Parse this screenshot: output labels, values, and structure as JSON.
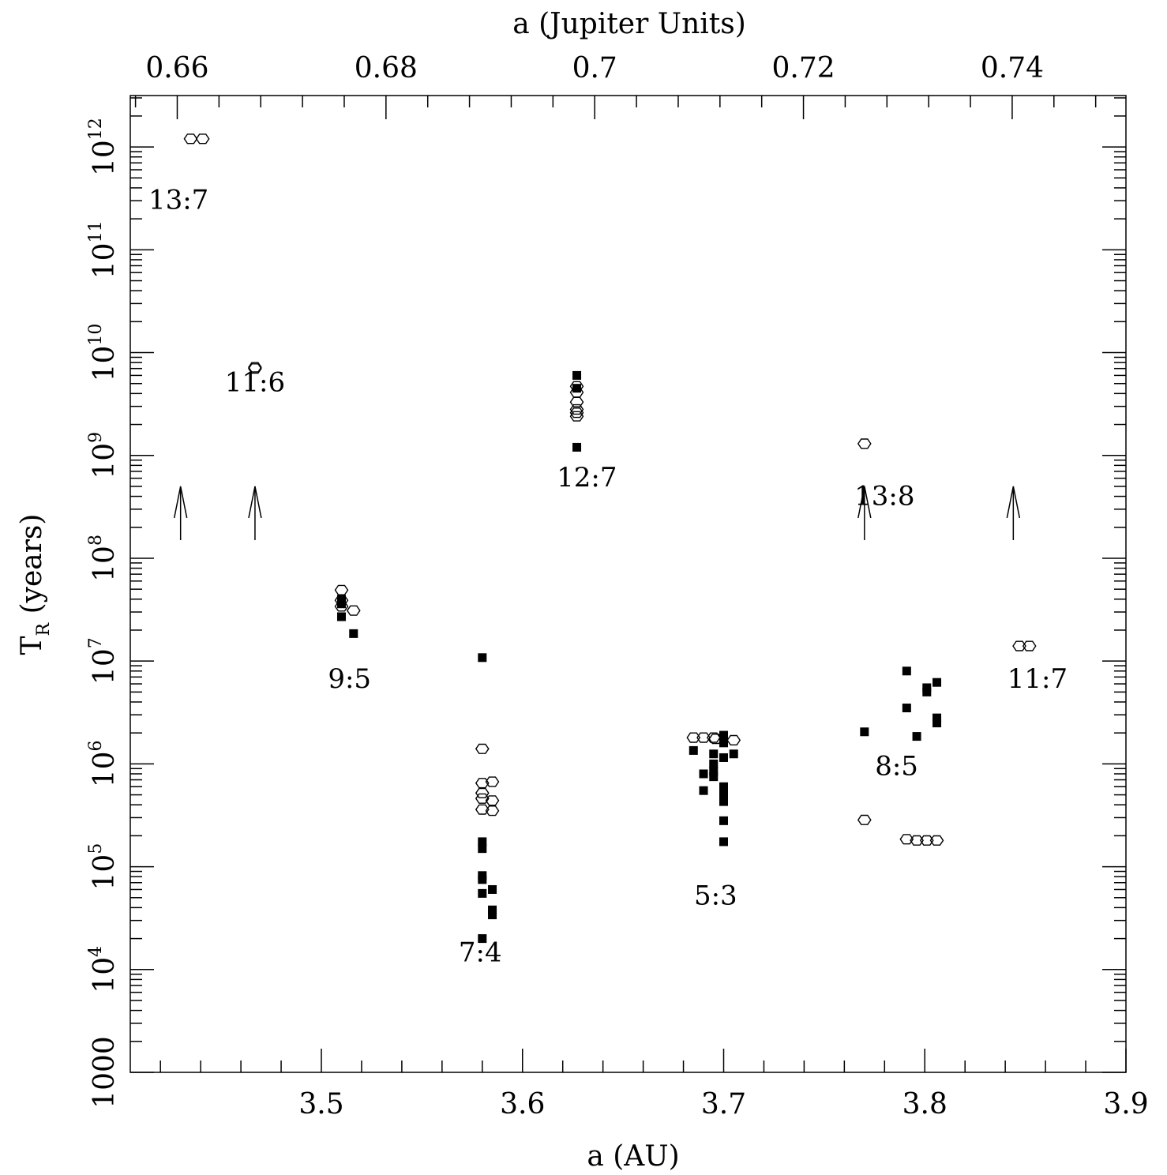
{
  "chart_data": {
    "type": "scatter",
    "title": "",
    "xlabel": "a (AU)",
    "xlabel_top": "a (Jupiter Units)",
    "ylabel": "T",
    "ylabel_subscript": "R",
    "ylabel_unit": "(years)",
    "xlim": [
      3.405,
      3.9
    ],
    "xlim_top": [
      0.6555,
      0.7509
    ],
    "ylim_log10": [
      3,
      12.5
    ],
    "yscale": "log",
    "grid": false,
    "legend": "none",
    "x_ticks": [
      {
        "value": 3.5,
        "label": "3.5"
      },
      {
        "value": 3.6,
        "label": "3.6"
      },
      {
        "value": 3.7,
        "label": "3.7"
      },
      {
        "value": 3.8,
        "label": "3.8"
      },
      {
        "value": 3.9,
        "label": "3.9"
      }
    ],
    "x_top_ticks": [
      {
        "value": 0.66,
        "label": "0.66"
      },
      {
        "value": 0.68,
        "label": "0.68"
      },
      {
        "value": 0.7,
        "label": "0.7"
      },
      {
        "value": 0.72,
        "label": "0.72"
      },
      {
        "value": 0.74,
        "label": "0.74"
      }
    ],
    "y_ticks": [
      {
        "exp": 3,
        "base": "1000",
        "sup": ""
      },
      {
        "exp": 4,
        "base": "10",
        "sup": "4"
      },
      {
        "exp": 5,
        "base": "10",
        "sup": "5"
      },
      {
        "exp": 6,
        "base": "10",
        "sup": "6"
      },
      {
        "exp": 7,
        "base": "10",
        "sup": "7"
      },
      {
        "exp": 8,
        "base": "10",
        "sup": "8"
      },
      {
        "exp": 9,
        "base": "10",
        "sup": "9"
      },
      {
        "exp": 10,
        "base": "10",
        "sup": "10"
      },
      {
        "exp": 11,
        "base": "10",
        "sup": "11"
      },
      {
        "exp": 12,
        "base": "10",
        "sup": "12"
      }
    ],
    "annotations": [
      {
        "text": "13:7",
        "x": 3.429,
        "y": 250000000000.0
      },
      {
        "text": "11:6",
        "x": 3.467,
        "y": 4200000000.0
      },
      {
        "text": "12:7",
        "x": 3.632,
        "y": 500000000.0
      },
      {
        "text": "13:8",
        "x": 3.78,
        "y": 330000000.0
      },
      {
        "text": "9:5",
        "x": 3.514,
        "y": 5500000.0
      },
      {
        "text": "7:4",
        "x": 3.579,
        "y": 12000.0
      },
      {
        "text": "5:3",
        "x": 3.696,
        "y": 43000.0
      },
      {
        "text": "8:5",
        "x": 3.786,
        "y": 780000.0
      },
      {
        "text": "11:7",
        "x": 3.856,
        "y": 5500000.0
      }
    ],
    "arrows": [
      {
        "x": 3.43,
        "from": 150000000.0,
        "to": 500000000.0
      },
      {
        "x": 3.467,
        "from": 150000000.0,
        "to": 500000000.0
      },
      {
        "x": 3.77,
        "from": 150000000.0,
        "to": 500000000.0
      },
      {
        "x": 3.844,
        "from": 150000000.0,
        "to": 500000000.0
      }
    ],
    "series": [
      {
        "marker": "open-hexagon",
        "points": [
          [
            3.435,
            1200000000000.0
          ],
          [
            3.441,
            1200000000000.0
          ],
          [
            3.467,
            7000000000.0
          ],
          [
            3.467,
            7200000000.0
          ],
          [
            3.51,
            49000000.0
          ],
          [
            3.51,
            39000000.0
          ],
          [
            3.51,
            34000000.0
          ],
          [
            3.516,
            31000000.0
          ],
          [
            3.627,
            4700000000.0
          ],
          [
            3.627,
            4100000000.0
          ],
          [
            3.627,
            3300000000.0
          ],
          [
            3.627,
            2800000000.0
          ],
          [
            3.627,
            2600000000.0
          ],
          [
            3.627,
            2400000000.0
          ],
          [
            3.58,
            1400000.0
          ],
          [
            3.58,
            650000.0
          ],
          [
            3.58,
            520000.0
          ],
          [
            3.58,
            460000.0
          ],
          [
            3.58,
            360000.0
          ],
          [
            3.585,
            670000.0
          ],
          [
            3.585,
            440000.0
          ],
          [
            3.585,
            350000.0
          ],
          [
            3.685,
            1800000.0
          ],
          [
            3.69,
            1800000.0
          ],
          [
            3.695,
            1800000.0
          ],
          [
            3.696,
            1750000.0
          ],
          [
            3.705,
            1700000.0
          ],
          [
            3.77,
            1300000000.0
          ],
          [
            3.77,
            285000.0
          ],
          [
            3.791,
            185000.0
          ],
          [
            3.796,
            180000.0
          ],
          [
            3.801,
            180000.0
          ],
          [
            3.806,
            180000.0
          ],
          [
            3.847,
            14000000.0
          ],
          [
            3.852,
            14000000.0
          ]
        ]
      },
      {
        "marker": "filled-square",
        "points": [
          [
            3.627,
            6000000000.0
          ],
          [
            3.627,
            4500000000.0
          ],
          [
            3.627,
            1200000000.0
          ],
          [
            3.51,
            40000000.0
          ],
          [
            3.51,
            36000000.0
          ],
          [
            3.51,
            27000000.0
          ],
          [
            3.516,
            18500000.0
          ],
          [
            3.58,
            10800000.0
          ],
          [
            3.58,
            175000.0
          ],
          [
            3.58,
            150000.0
          ],
          [
            3.58,
            82000.0
          ],
          [
            3.58,
            75000.0
          ],
          [
            3.58,
            55000.0
          ],
          [
            3.585,
            60000.0
          ],
          [
            3.585,
            38000.0
          ],
          [
            3.585,
            34000.0
          ],
          [
            3.58,
            20000.0
          ],
          [
            3.685,
            1350000.0
          ],
          [
            3.69,
            800000.0
          ],
          [
            3.69,
            550000.0
          ],
          [
            3.695,
            1250000.0
          ],
          [
            3.695,
            1000000.0
          ],
          [
            3.695,
            850000.0
          ],
          [
            3.695,
            750000.0
          ],
          [
            3.7,
            1900000.0
          ],
          [
            3.7,
            1600000.0
          ],
          [
            3.7,
            1150000.0
          ],
          [
            3.7,
            600000.0
          ],
          [
            3.7,
            500000.0
          ],
          [
            3.7,
            430000.0
          ],
          [
            3.7,
            280000.0
          ],
          [
            3.7,
            175000.0
          ],
          [
            3.705,
            1250000.0
          ],
          [
            3.77,
            2050000.0
          ],
          [
            3.791,
            8000000.0
          ],
          [
            3.791,
            3500000.0
          ],
          [
            3.796,
            1850000.0
          ],
          [
            3.801,
            5500000.0
          ],
          [
            3.801,
            5000000.0
          ],
          [
            3.806,
            6200000.0
          ],
          [
            3.806,
            2800000.0
          ],
          [
            3.806,
            2500000.0
          ]
        ]
      }
    ]
  }
}
